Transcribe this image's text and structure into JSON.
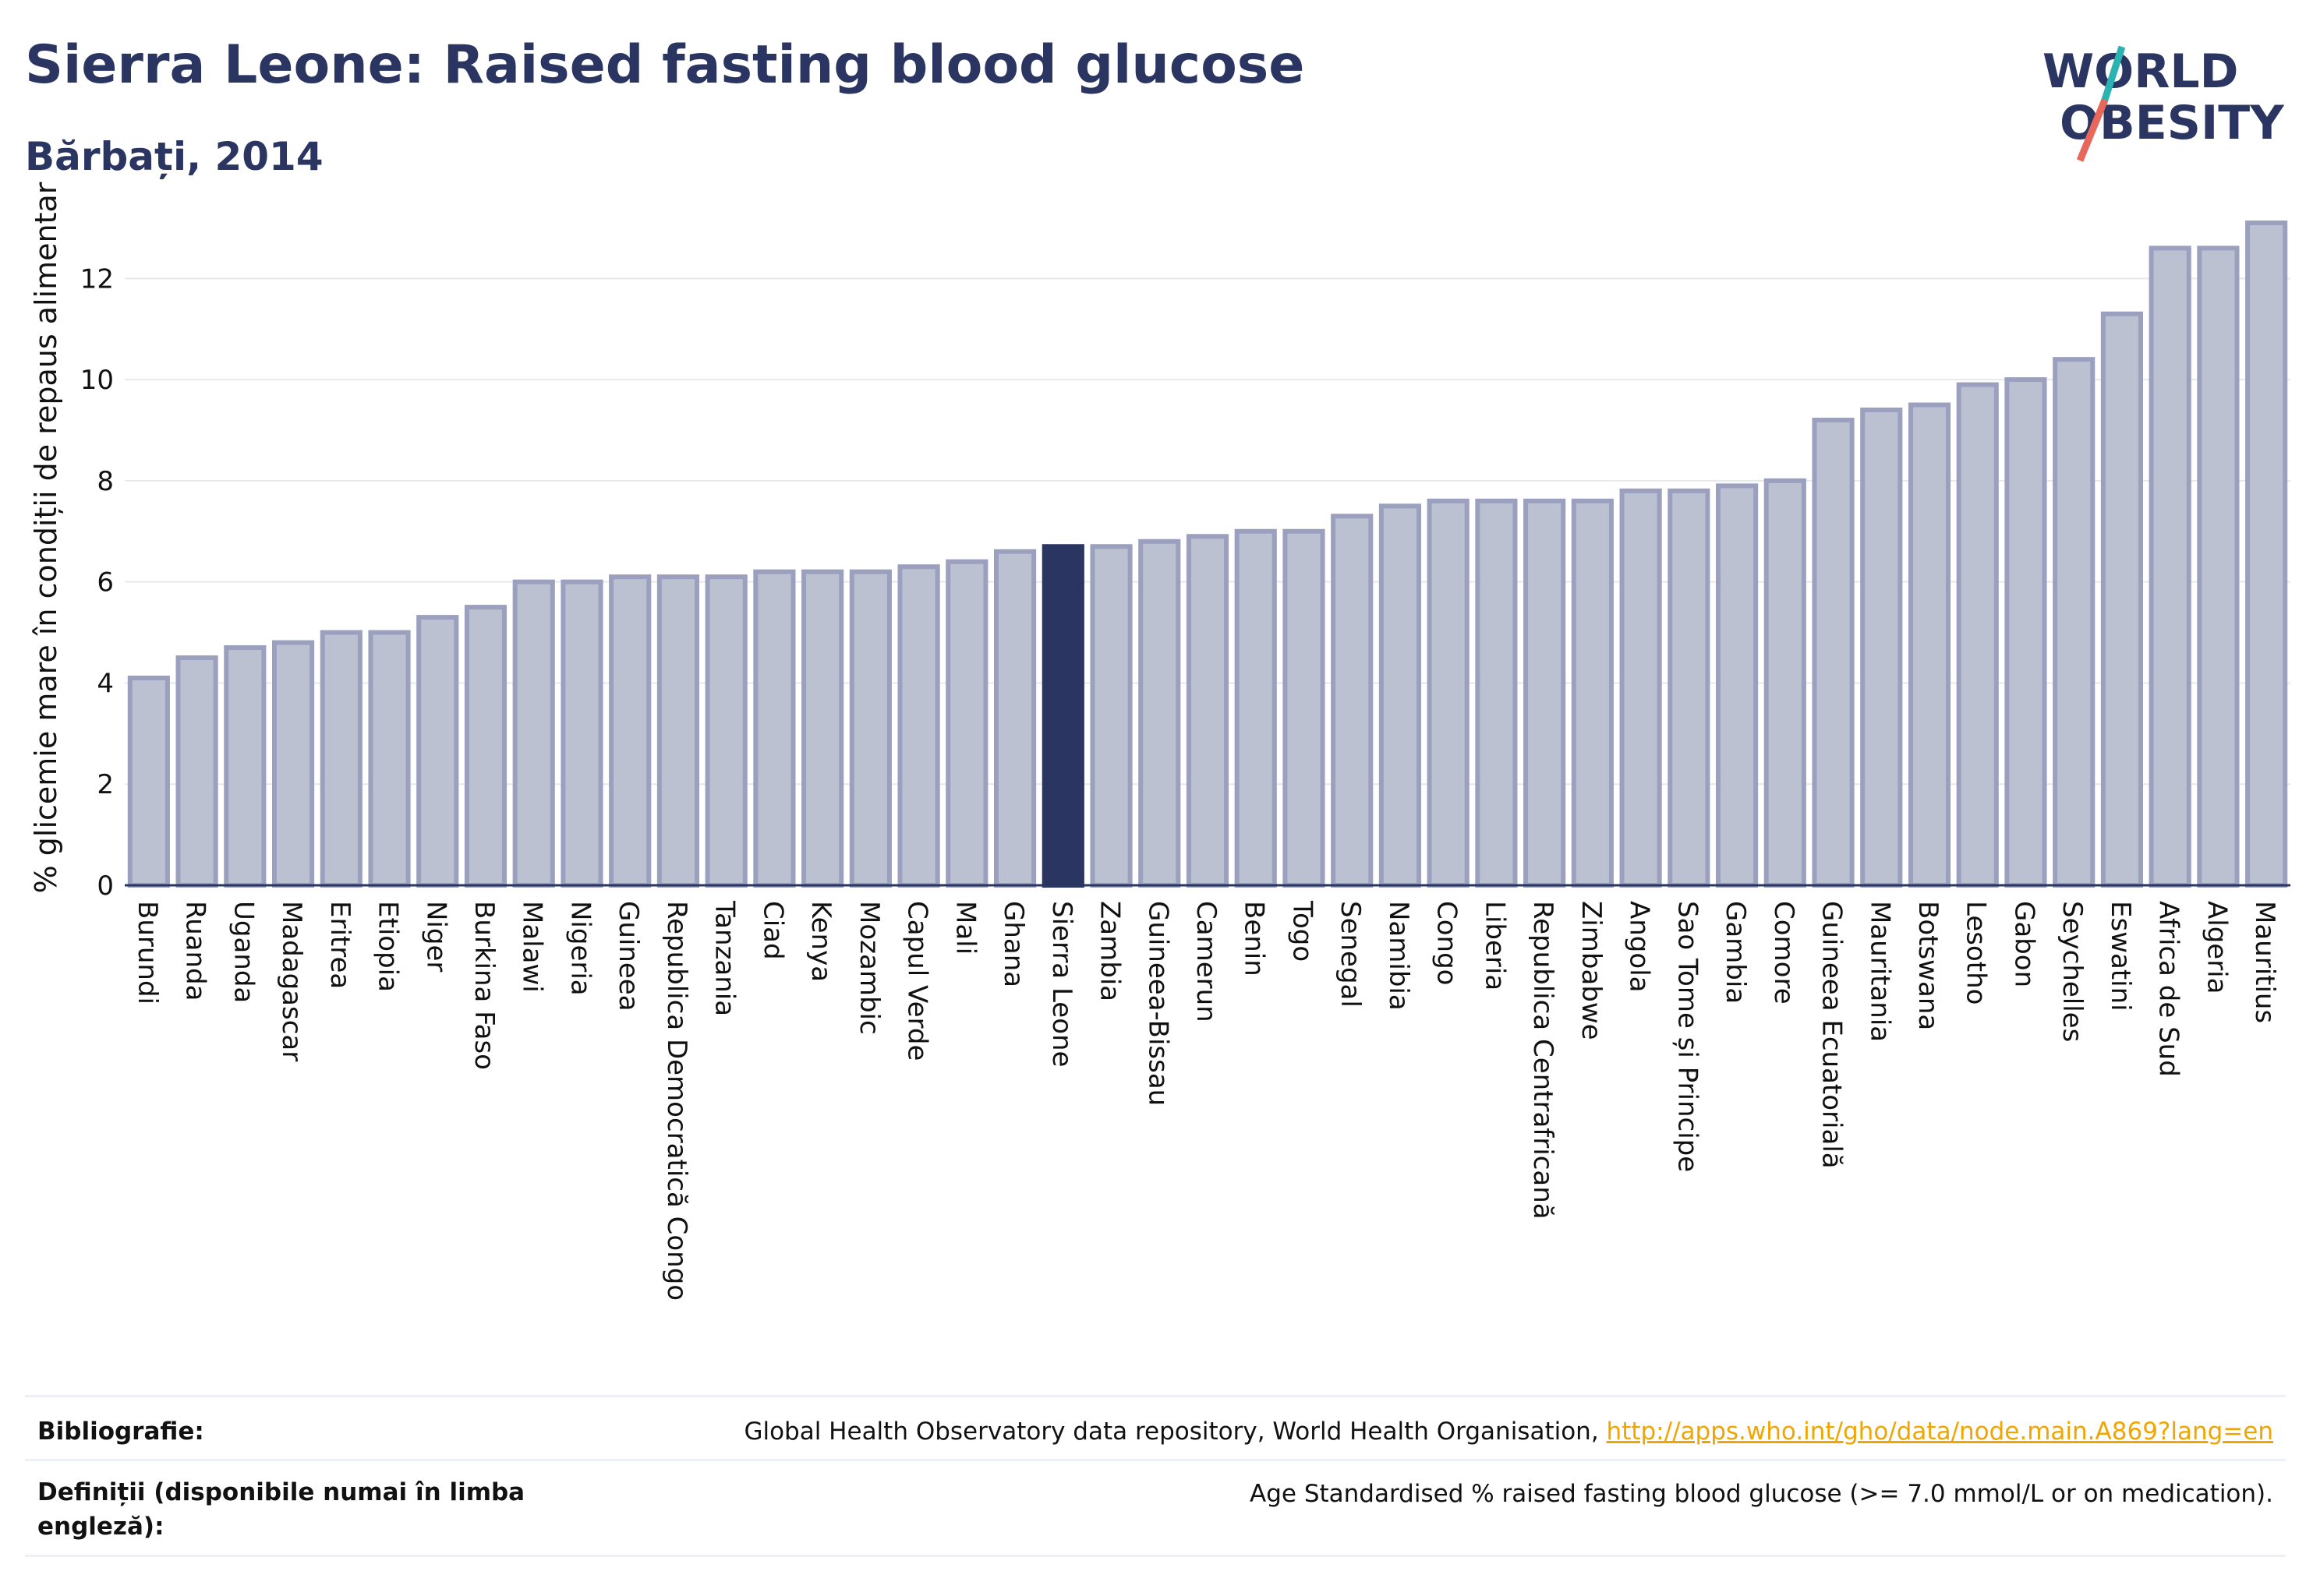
{
  "header": {
    "title": "Sierra Leone: Raised fasting blood glucose",
    "subtitle": "Bărbați, 2014"
  },
  "logo": {
    "line1": "WORLD",
    "line2": "OBESITY",
    "colors": {
      "text": "#2b3561",
      "slash_teal": "#2bb3b1",
      "slash_coral": "#e8665a"
    }
  },
  "chart_data": {
    "type": "bar",
    "ylabel": "% glicemie mare în condiții de repaus alimentar",
    "xlabel": "",
    "ylim": [
      0,
      13.5
    ],
    "yticks": [
      0,
      2,
      4,
      6,
      8,
      10,
      12
    ],
    "grid": true,
    "highlight": "Sierra Leone",
    "colors": {
      "bar": "#bcc1d1",
      "bar_border": "#9aa0bd",
      "highlight": "#2b3561"
    },
    "categories": [
      "Burundi",
      "Ruanda",
      "Uganda",
      "Madagascar",
      "Eritrea",
      "Etiopia",
      "Niger",
      "Burkina Faso",
      "Malawi",
      "Nigeria",
      "Guineea",
      "Republica Democratică Congo",
      "Tanzania",
      "Ciad",
      "Kenya",
      "Mozambic",
      "Capul Verde",
      "Mali",
      "Ghana",
      "Sierra Leone",
      "Zambia",
      "Guineea-Bissau",
      "Camerun",
      "Benin",
      "Togo",
      "Senegal",
      "Namibia",
      "Congo",
      "Liberia",
      "Republica Centrafricană",
      "Zimbabwe",
      "Angola",
      "Sao Tome și Principe",
      "Gambia",
      "Comore",
      "Guineea Ecuatorială",
      "Mauritania",
      "Botswana",
      "Lesotho",
      "Gabon",
      "Seychelles",
      "Eswatini",
      "Africa de Sud",
      "Algeria",
      "Mauritius"
    ],
    "values": [
      4.1,
      4.5,
      4.7,
      4.8,
      5.0,
      5.0,
      5.3,
      5.5,
      6.0,
      6.0,
      6.1,
      6.1,
      6.1,
      6.2,
      6.2,
      6.2,
      6.3,
      6.4,
      6.6,
      6.7,
      6.7,
      6.8,
      6.9,
      7.0,
      7.0,
      7.3,
      7.5,
      7.6,
      7.6,
      7.6,
      7.6,
      7.8,
      7.8,
      7.9,
      8.0,
      9.2,
      9.4,
      9.5,
      9.9,
      10.0,
      10.4,
      11.3,
      12.6,
      12.6,
      13.1
    ]
  },
  "footer": {
    "bibliography_label": "Bibliografie:",
    "bibliography_text": "Global Health Observatory data repository, World Health Organisation, ",
    "bibliography_link": "http://apps.who.int/gho/data/node.main.A869?lang=en",
    "definitions_label": "Definiții (disponibile numai în limba engleză):",
    "definitions_text": "Age Standardised % raised fasting blood glucose (>= 7.0 mmol/L or on medication)."
  }
}
